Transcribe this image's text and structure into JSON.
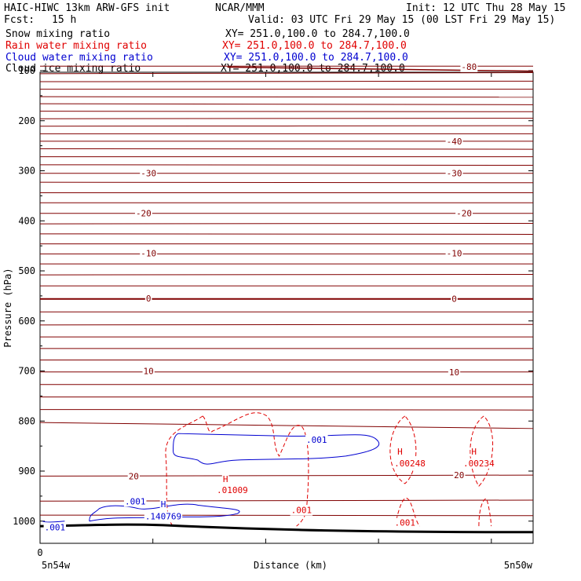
{
  "header": {
    "model": "HAIC-HIWC 13km ARW-GFS init",
    "center": "NCAR/MMM",
    "init": "Init: 12 UTC Thu 28 May 15",
    "fcst_label": "Fcst:",
    "fcst_value": "15 h",
    "valid": "Valid: 03 UTC Fri 29 May 15 (00 LST Fri 29 May 15)"
  },
  "fields": [
    {
      "name": "Snow mixing ratio",
      "xy": "XY= 251.0,100.0 to 284.7,100.0",
      "color": "#000000"
    },
    {
      "name": "Rain water mixing ratio",
      "xy": "XY= 251.0,100.0 to 284.7,100.0",
      "color": "#e00000"
    },
    {
      "name": "Cloud water mixing ratio",
      "xy": "XY= 251.0,100.0 to 284.7,100.0",
      "color": "#0000d0"
    },
    {
      "name": "Cloud ice mixing ratio",
      "xy": "XY= 251.0,100.0 to 284.7,100.0",
      "color": "#000000"
    }
  ],
  "chart_data": {
    "type": "line",
    "ylabel": "Pressure (hPa)",
    "xlabel": "Distance (km)",
    "x_left_label": "5n54w",
    "x_right_label": "5n50w",
    "x_origin_label": "0",
    "yticks": [
      100,
      200,
      300,
      400,
      500,
      600,
      700,
      800,
      900,
      1000
    ],
    "temperature_color": "#800000",
    "temperature_labels": [
      {
        "text": "-80",
        "x": 0.87,
        "p": 92
      },
      {
        "text": "-40",
        "x": 0.84,
        "p": 241
      },
      {
        "text": "-30",
        "x": 0.22,
        "p": 305
      },
      {
        "text": "-30",
        "x": 0.84,
        "p": 305
      },
      {
        "text": "-20",
        "x": 0.21,
        "p": 385
      },
      {
        "text": "-20",
        "x": 0.86,
        "p": 385
      },
      {
        "text": "-10",
        "x": 0.22,
        "p": 465
      },
      {
        "text": "-10",
        "x": 0.84,
        "p": 465
      },
      {
        "text": "0",
        "x": 0.22,
        "p": 555
      },
      {
        "text": "0",
        "x": 0.84,
        "p": 556
      },
      {
        "text": "10",
        "x": 0.22,
        "p": 700
      },
      {
        "text": "10",
        "x": 0.84,
        "p": 702
      },
      {
        "text": "20",
        "x": 0.19,
        "p": 910
      },
      {
        "text": "20",
        "x": 0.85,
        "p": 908
      }
    ],
    "rain_labels": [
      {
        "text": "H",
        "x": 0.376,
        "p": 916
      },
      {
        "text": ".01009",
        "x": 0.39,
        "p": 938
      },
      {
        "text": ".001",
        "x": 0.53,
        "p": 978
      },
      {
        "text": "H",
        "x": 0.73,
        "p": 861
      },
      {
        "text": ".00248",
        "x": 0.75,
        "p": 884
      },
      {
        "text": "H",
        "x": 0.88,
        "p": 861
      },
      {
        "text": ".00234",
        "x": 0.89,
        "p": 884
      },
      {
        "text": ".001",
        "x": 0.74,
        "p": 1003
      }
    ],
    "cloud_labels": [
      {
        "text": ".001",
        "x": 0.561,
        "p": 837
      },
      {
        "text": ".001",
        "x": 0.193,
        "p": 960
      },
      {
        "text": "H",
        "x": 0.25,
        "p": 966
      },
      {
        "text": ".140769",
        "x": 0.25,
        "p": 990
      },
      {
        "text": ".001",
        "x": 0.03,
        "p": 1012
      }
    ]
  }
}
